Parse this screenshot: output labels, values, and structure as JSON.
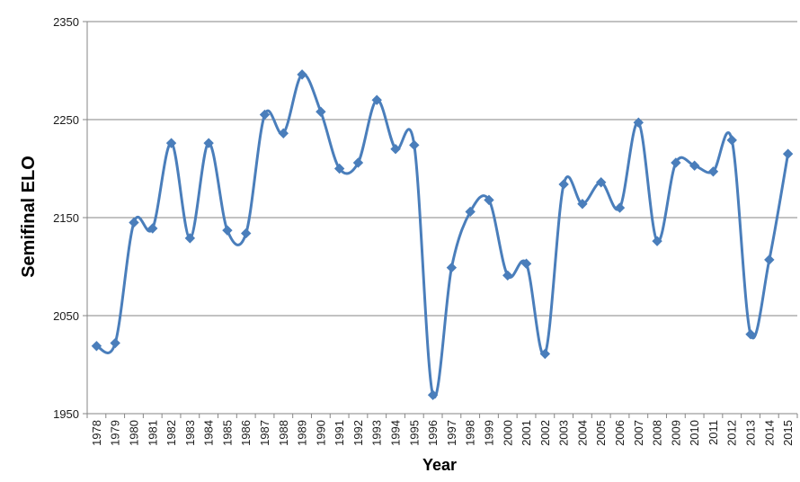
{
  "chart_data": {
    "type": "line",
    "title": "",
    "xlabel": "Year",
    "ylabel": "Semifinal ELO",
    "ylim": [
      1950,
      2350
    ],
    "yticks": [
      1950,
      2050,
      2150,
      2250,
      2350
    ],
    "grid": true,
    "legend": "none",
    "smooth": true,
    "colors": {
      "line": "#4a7ebb",
      "marker": "#4a7ebb",
      "grid": "#868686",
      "axis": "#868686"
    },
    "categories": [
      "1978",
      "1979",
      "1980",
      "1981",
      "1982",
      "1983",
      "1984",
      "1985",
      "1986",
      "1987",
      "1988",
      "1989",
      "1990",
      "1991",
      "1992",
      "1993",
      "1994",
      "1995",
      "1996",
      "1997",
      "1998",
      "1999",
      "2000",
      "2001",
      "2002",
      "2003",
      "2004",
      "2005",
      "2006",
      "2007",
      "2008",
      "2009",
      "2010",
      "2011",
      "2012",
      "2013",
      "2014",
      "2015"
    ],
    "series": [
      {
        "values": [
          2019,
          2022,
          2145,
          2139,
          2226,
          2129,
          2226,
          2137,
          2134,
          2255,
          2236,
          2296,
          2258,
          2200,
          2206,
          2270,
          2220,
          2224,
          1969,
          2099,
          2156,
          2168,
          2091,
          2103,
          2011,
          2184,
          2164,
          2186,
          2160,
          2247,
          2126,
          2206,
          2203,
          2197,
          2229,
          2031,
          2107,
          2215
        ]
      }
    ]
  }
}
